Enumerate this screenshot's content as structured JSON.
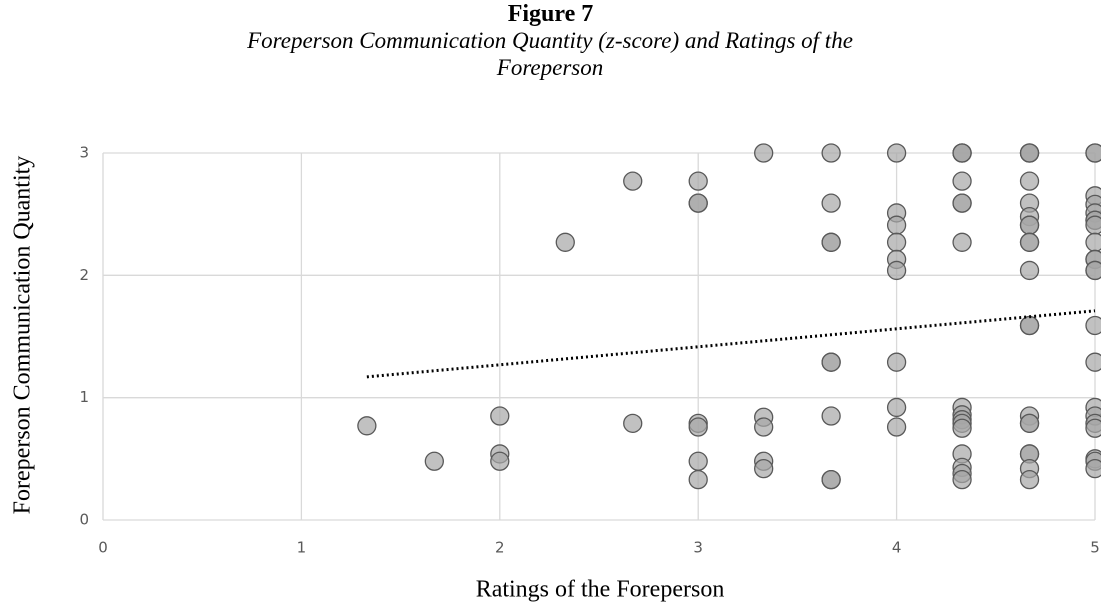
{
  "chart_data": {
    "type": "scatter",
    "title": "Figure 7",
    "subtitle": "Foreperson Communication Quantity (z-score) and Ratings of the Foreperson",
    "xlabel": "Ratings of the Foreperson",
    "ylabel": "Foreperson Communication Quantity",
    "xlim": [
      0,
      5
    ],
    "ylim": [
      0,
      3
    ],
    "xticks": [
      0,
      1,
      2,
      3,
      4,
      5
    ],
    "yticks": [
      0,
      1,
      2,
      3
    ],
    "grid": true,
    "trendline": {
      "style": "dotted",
      "color": "#000000",
      "x": [
        1.33,
        5
      ],
      "y": [
        1.17,
        1.71
      ]
    },
    "series": [
      {
        "color": "#a6a6a6",
        "x": [
          1.33,
          1.67,
          2,
          2,
          2,
          2.33,
          2.67,
          2.67,
          3,
          3,
          3,
          3,
          3,
          3,
          3,
          3.33,
          3.33,
          3.33,
          3.33,
          3.33,
          3.67,
          3.67,
          3.67,
          3.67,
          3.67,
          3.67,
          3.67,
          3.67,
          3.67,
          4,
          4,
          4,
          4,
          4,
          4,
          4,
          4,
          4,
          4.33,
          4.33,
          4.33,
          4.33,
          4.33,
          4.33,
          4.33,
          4.33,
          4.33,
          4.33,
          4.33,
          4.33,
          4.33,
          4.33,
          4.33,
          4.33,
          4.67,
          4.67,
          4.67,
          4.67,
          4.67,
          4.67,
          4.67,
          4.67,
          4.67,
          4.67,
          4.67,
          4.67,
          4.67,
          4.67,
          4.67,
          4.67,
          4.67,
          4.67,
          4.67,
          4.67,
          5,
          5,
          5,
          5,
          5,
          5,
          5,
          5,
          5,
          5,
          5,
          5,
          5,
          5,
          5,
          5,
          5,
          5,
          5,
          5,
          5,
          5
        ],
        "values": [
          0.77,
          0.48,
          0.85,
          0.54,
          0.48,
          2.27,
          2.77,
          0.79,
          2.77,
          2.59,
          2.59,
          0.79,
          0.76,
          0.48,
          0.33,
          3,
          0.84,
          0.76,
          0.48,
          0.42,
          3,
          2.59,
          2.27,
          2.27,
          1.29,
          1.29,
          0.85,
          0.33,
          0.33,
          3,
          2.51,
          2.41,
          2.27,
          2.13,
          2.04,
          1.29,
          0.92,
          0.76,
          3,
          3,
          3,
          2.77,
          2.59,
          2.59,
          2.27,
          0.92,
          0.86,
          0.82,
          0.79,
          0.75,
          0.54,
          0.43,
          0.38,
          0.33,
          3,
          3,
          3,
          2.77,
          2.59,
          2.48,
          2.41,
          2.41,
          2.27,
          2.27,
          2.04,
          1.59,
          1.59,
          0.85,
          0.79,
          0.79,
          0.54,
          0.54,
          0.42,
          0.33,
          3,
          3,
          2.65,
          2.58,
          2.51,
          2.45,
          2.45,
          2.41,
          2.27,
          2.13,
          2.13,
          2.04,
          2.04,
          1.59,
          1.29,
          0.92,
          0.85,
          0.79,
          0.75,
          0.5,
          0.48,
          0.42
        ]
      }
    ]
  }
}
